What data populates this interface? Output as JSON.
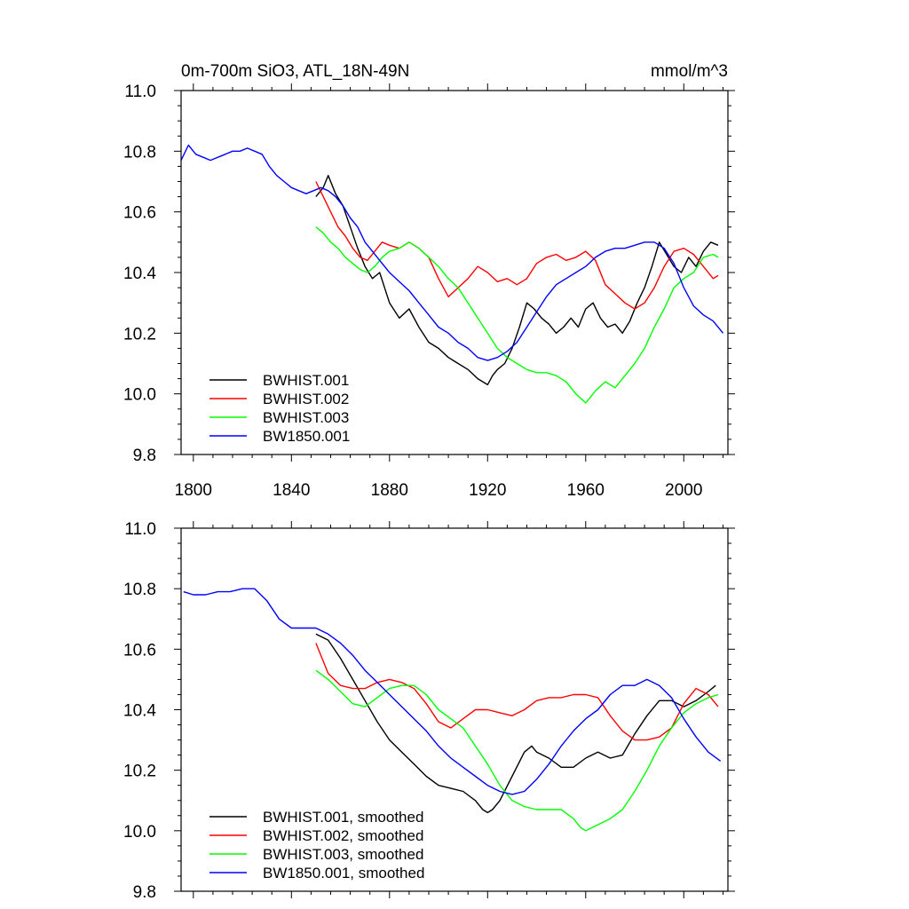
{
  "chart_data": [
    {
      "type": "line",
      "title": "0m-700m SiO3, ATL_18N-49N",
      "units": "mmol/m^3",
      "xlabel": "",
      "ylabel": "",
      "xlim": [
        1795,
        2018
      ],
      "ylim": [
        9.8,
        11.0
      ],
      "xtick_labels": [
        "1800",
        "1840",
        "1880",
        "1920",
        "1960",
        "2000"
      ],
      "ytick_labels": [
        "9.8",
        "10.0",
        "10.2",
        "10.4",
        "10.6",
        "10.8",
        "11.0"
      ],
      "legend_position": "bottom-left",
      "series": [
        {
          "name": "BWHIST.001",
          "color": "#000000",
          "x": [
            1850,
            1853,
            1855,
            1858,
            1861,
            1864,
            1867,
            1870,
            1873,
            1876,
            1880,
            1884,
            1888,
            1892,
            1896,
            1900,
            1904,
            1908,
            1912,
            1916,
            1920,
            1922,
            1924,
            1927,
            1930,
            1933,
            1936,
            1939,
            1942,
            1945,
            1948,
            1951,
            1954,
            1957,
            1960,
            1963,
            1966,
            1969,
            1972,
            1975,
            1978,
            1981,
            1984,
            1987,
            1990,
            1993,
            1996,
            1999,
            2002,
            2005,
            2008,
            2011,
            2014
          ],
          "y": [
            10.65,
            10.68,
            10.72,
            10.66,
            10.62,
            10.55,
            10.48,
            10.42,
            10.38,
            10.4,
            10.3,
            10.25,
            10.28,
            10.22,
            10.17,
            10.15,
            10.12,
            10.1,
            10.08,
            10.05,
            10.03,
            10.06,
            10.08,
            10.1,
            10.15,
            10.22,
            10.3,
            10.28,
            10.25,
            10.23,
            10.2,
            10.22,
            10.25,
            10.22,
            10.28,
            10.3,
            10.25,
            10.22,
            10.23,
            10.2,
            10.24,
            10.3,
            10.35,
            10.42,
            10.5,
            10.46,
            10.42,
            10.4,
            10.45,
            10.42,
            10.47,
            10.5,
            10.49
          ]
        },
        {
          "name": "BWHIST.002",
          "color": "#ff0000",
          "x": [
            1850,
            1853,
            1856,
            1859,
            1862,
            1865,
            1868,
            1871,
            1874,
            1877,
            1880,
            1884,
            1888,
            1892,
            1896,
            1900,
            1904,
            1908,
            1912,
            1916,
            1920,
            1924,
            1928,
            1932,
            1936,
            1940,
            1944,
            1948,
            1952,
            1956,
            1960,
            1964,
            1968,
            1972,
            1976,
            1980,
            1984,
            1988,
            1992,
            1996,
            2000,
            2004,
            2008,
            2012,
            2014
          ],
          "y": [
            10.7,
            10.65,
            10.6,
            10.55,
            10.52,
            10.48,
            10.45,
            10.44,
            10.47,
            10.5,
            10.49,
            10.48,
            10.5,
            10.48,
            10.45,
            10.38,
            10.32,
            10.35,
            10.38,
            10.42,
            10.4,
            10.37,
            10.38,
            10.36,
            10.38,
            10.43,
            10.45,
            10.46,
            10.44,
            10.45,
            10.47,
            10.44,
            10.36,
            10.33,
            10.3,
            10.28,
            10.3,
            10.35,
            10.42,
            10.47,
            10.48,
            10.46,
            10.42,
            10.38,
            10.39
          ]
        },
        {
          "name": "BWHIST.003",
          "color": "#00ff00",
          "x": [
            1850,
            1853,
            1856,
            1859,
            1862,
            1865,
            1868,
            1871,
            1874,
            1877,
            1880,
            1884,
            1888,
            1892,
            1896,
            1900,
            1904,
            1908,
            1912,
            1916,
            1920,
            1924,
            1928,
            1932,
            1936,
            1940,
            1944,
            1948,
            1952,
            1956,
            1960,
            1964,
            1968,
            1972,
            1976,
            1980,
            1984,
            1988,
            1992,
            1996,
            2000,
            2004,
            2008,
            2012,
            2014
          ],
          "y": [
            10.55,
            10.53,
            10.5,
            10.48,
            10.45,
            10.43,
            10.41,
            10.4,
            10.42,
            10.45,
            10.47,
            10.48,
            10.5,
            10.48,
            10.45,
            10.42,
            10.38,
            10.35,
            10.3,
            10.25,
            10.2,
            10.15,
            10.12,
            10.1,
            10.08,
            10.07,
            10.07,
            10.06,
            10.04,
            10.0,
            9.97,
            10.01,
            10.04,
            10.02,
            10.06,
            10.1,
            10.15,
            10.22,
            10.28,
            10.35,
            10.38,
            10.4,
            10.45,
            10.46,
            10.45
          ]
        },
        {
          "name": "BW1850.001",
          "color": "#0000ff",
          "x": [
            1795,
            1798,
            1801,
            1804,
            1807,
            1810,
            1813,
            1816,
            1819,
            1822,
            1825,
            1828,
            1831,
            1834,
            1837,
            1840,
            1843,
            1846,
            1849,
            1852,
            1855,
            1858,
            1861,
            1864,
            1867,
            1870,
            1873,
            1876,
            1880,
            1884,
            1888,
            1892,
            1896,
            1900,
            1904,
            1908,
            1912,
            1916,
            1920,
            1924,
            1928,
            1932,
            1936,
            1940,
            1944,
            1948,
            1952,
            1956,
            1960,
            1964,
            1968,
            1972,
            1976,
            1980,
            1984,
            1988,
            1992,
            1996,
            2000,
            2004,
            2008,
            2012,
            2016
          ],
          "y": [
            10.77,
            10.82,
            10.79,
            10.78,
            10.77,
            10.78,
            10.79,
            10.8,
            10.8,
            10.81,
            10.8,
            10.79,
            10.75,
            10.72,
            10.7,
            10.68,
            10.67,
            10.66,
            10.67,
            10.68,
            10.67,
            10.65,
            10.62,
            10.58,
            10.55,
            10.5,
            10.47,
            10.44,
            10.4,
            10.37,
            10.34,
            10.3,
            10.26,
            10.22,
            10.2,
            10.17,
            10.15,
            10.12,
            10.11,
            10.12,
            10.14,
            10.17,
            10.22,
            10.27,
            10.32,
            10.36,
            10.38,
            10.4,
            10.42,
            10.45,
            10.47,
            10.48,
            10.48,
            10.49,
            10.5,
            10.5,
            10.48,
            10.43,
            10.35,
            10.29,
            10.26,
            10.24,
            10.2
          ]
        }
      ]
    },
    {
      "type": "line",
      "title": "",
      "xlabel": "",
      "ylabel": "",
      "xlim": [
        1795,
        2018
      ],
      "ylim": [
        9.8,
        11.0
      ],
      "ytick_labels": [
        "9.8",
        "10.0",
        "10.2",
        "10.4",
        "10.6",
        "10.8",
        "11.0"
      ],
      "legend_position": "bottom-left",
      "series": [
        {
          "name": "BWHIST.001, smoothed",
          "color": "#000000",
          "x": [
            1850,
            1855,
            1860,
            1865,
            1870,
            1875,
            1880,
            1885,
            1890,
            1895,
            1900,
            1905,
            1910,
            1915,
            1918,
            1920,
            1922,
            1925,
            1930,
            1935,
            1938,
            1940,
            1945,
            1950,
            1955,
            1960,
            1965,
            1970,
            1975,
            1980,
            1985,
            1990,
            1995,
            2000,
            2005,
            2010,
            2013
          ],
          "y": [
            10.65,
            10.63,
            10.57,
            10.5,
            10.43,
            10.36,
            10.3,
            10.26,
            10.22,
            10.18,
            10.15,
            10.14,
            10.13,
            10.1,
            10.07,
            10.06,
            10.07,
            10.1,
            10.18,
            10.26,
            10.28,
            10.26,
            10.24,
            10.21,
            10.21,
            10.24,
            10.26,
            10.24,
            10.25,
            10.32,
            10.38,
            10.43,
            10.43,
            10.41,
            10.43,
            10.46,
            10.48
          ]
        },
        {
          "name": "BWHIST.002, smoothed",
          "color": "#ff0000",
          "x": [
            1850,
            1855,
            1860,
            1865,
            1870,
            1875,
            1880,
            1885,
            1890,
            1895,
            1900,
            1905,
            1910,
            1915,
            1920,
            1925,
            1930,
            1935,
            1940,
            1945,
            1950,
            1955,
            1960,
            1965,
            1970,
            1975,
            1980,
            1985,
            1990,
            1995,
            2000,
            2005,
            2010,
            2014
          ],
          "y": [
            10.62,
            10.52,
            10.48,
            10.47,
            10.47,
            10.49,
            10.5,
            10.49,
            10.47,
            10.42,
            10.36,
            10.34,
            10.37,
            10.4,
            10.4,
            10.39,
            10.38,
            10.4,
            10.43,
            10.44,
            10.44,
            10.45,
            10.45,
            10.44,
            10.38,
            10.33,
            10.3,
            10.3,
            10.31,
            10.34,
            10.42,
            10.47,
            10.45,
            10.41
          ]
        },
        {
          "name": "BWHIST.003, smoothed",
          "color": "#00ff00",
          "x": [
            1850,
            1855,
            1860,
            1865,
            1870,
            1875,
            1880,
            1885,
            1890,
            1895,
            1900,
            1905,
            1910,
            1915,
            1920,
            1925,
            1930,
            1935,
            1940,
            1945,
            1950,
            1955,
            1958,
            1960,
            1965,
            1970,
            1975,
            1980,
            1985,
            1990,
            1995,
            2000,
            2005,
            2010,
            2014
          ],
          "y": [
            10.53,
            10.5,
            10.46,
            10.42,
            10.41,
            10.44,
            10.47,
            10.48,
            10.48,
            10.45,
            10.4,
            10.37,
            10.34,
            10.28,
            10.22,
            10.15,
            10.1,
            10.08,
            10.07,
            10.07,
            10.07,
            10.04,
            10.01,
            10.0,
            10.02,
            10.04,
            10.07,
            10.13,
            10.2,
            10.28,
            10.34,
            10.39,
            10.42,
            10.44,
            10.45
          ]
        },
        {
          "name": "BW1850.001, smoothed",
          "color": "#0000ff",
          "x": [
            1796,
            1800,
            1805,
            1810,
            1815,
            1820,
            1825,
            1830,
            1835,
            1840,
            1845,
            1850,
            1855,
            1860,
            1865,
            1870,
            1875,
            1880,
            1885,
            1890,
            1895,
            1900,
            1905,
            1910,
            1915,
            1920,
            1925,
            1930,
            1935,
            1940,
            1945,
            1950,
            1955,
            1960,
            1965,
            1970,
            1975,
            1980,
            1985,
            1990,
            1995,
            2000,
            2005,
            2010,
            2015
          ],
          "y": [
            10.79,
            10.78,
            10.78,
            10.79,
            10.79,
            10.8,
            10.8,
            10.76,
            10.7,
            10.67,
            10.67,
            10.67,
            10.65,
            10.62,
            10.58,
            10.53,
            10.49,
            10.45,
            10.41,
            10.37,
            10.33,
            10.28,
            10.24,
            10.21,
            10.18,
            10.15,
            10.13,
            10.12,
            10.13,
            10.17,
            10.22,
            10.28,
            10.33,
            10.37,
            10.4,
            10.45,
            10.48,
            10.48,
            10.5,
            10.48,
            10.44,
            10.37,
            10.31,
            10.26,
            10.23
          ]
        }
      ]
    }
  ]
}
